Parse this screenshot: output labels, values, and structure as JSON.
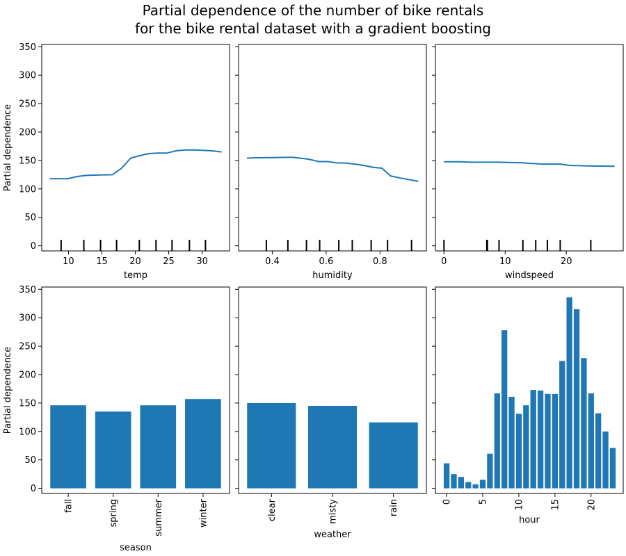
{
  "figure_title": [
    "Partial dependence of the number of bike rentals",
    "for the bike rental dataset with a gradient boosting"
  ],
  "colors": {
    "series": "#1f77b4",
    "rug": "#000000",
    "axes": "#000000"
  },
  "chart_data": [
    {
      "type": "line",
      "xlabel": "temp",
      "ylabel": "Partial dependence",
      "xlim": [
        6.0,
        34.1
      ],
      "ylim": [
        -9,
        354
      ],
      "grid": false,
      "xticks": [
        10,
        15,
        20,
        25,
        30
      ],
      "yticks": [
        0,
        50,
        100,
        150,
        200,
        250,
        300,
        350
      ],
      "x": [
        7.2,
        9.9,
        11.2,
        12.6,
        14.7,
        16.6,
        18.0,
        19.3,
        20.5,
        21.9,
        23.3,
        24.7,
        26.1,
        27.5,
        28.9,
        31.5,
        32.9
      ],
      "y": [
        118,
        118,
        121.6,
        123.7,
        124.5,
        125,
        137,
        154,
        158,
        162,
        163,
        163,
        167,
        168.5,
        168.5,
        167,
        165
      ],
      "deciles": [
        8.9,
        12.3,
        14.8,
        17.2,
        20.6,
        23.1,
        25.5,
        28.1,
        30.5
      ]
    },
    {
      "type": "line",
      "xlabel": "humidity",
      "ylabel": "",
      "xlim": [
        0.275,
        0.972
      ],
      "ylim": [
        -9,
        354
      ],
      "grid": false,
      "xticks": [
        0.4,
        0.6,
        0.8
      ],
      "yticks": [
        0,
        50,
        100,
        150,
        200,
        250,
        300,
        350
      ],
      "x": [
        0.306,
        0.34,
        0.405,
        0.474,
        0.534,
        0.573,
        0.607,
        0.637,
        0.671,
        0.706,
        0.74,
        0.774,
        0.807,
        0.839,
        0.877,
        0.942
      ],
      "y": [
        154,
        154.8,
        155,
        155.6,
        152.3,
        148,
        148,
        146,
        145.5,
        143.7,
        141.3,
        138,
        136.4,
        122.9,
        119,
        113.4
      ],
      "deciles": [
        0.378,
        0.458,
        0.527,
        0.576,
        0.647,
        0.697,
        0.767,
        0.828,
        0.917
      ]
    },
    {
      "type": "line",
      "xlabel": "windspeed",
      "ylabel": "",
      "xlim": [
        -1.4,
        29.3
      ],
      "ylim": [
        -9,
        354
      ],
      "grid": false,
      "xticks": [
        0,
        10,
        20
      ],
      "yticks": [
        0,
        50,
        100,
        150,
        200,
        250,
        300,
        350
      ],
      "x": [
        0,
        2.8,
        4.5,
        8.8,
        12.8,
        16,
        19,
        20.5,
        23.6,
        27.9
      ],
      "y": [
        147.8,
        147.8,
        147,
        147,
        145.8,
        143.7,
        143.7,
        141.3,
        140.5,
        139.7
      ],
      "deciles": [
        0,
        7.0,
        7.1,
        9.0,
        12.9,
        15.0,
        16.9,
        19.0,
        24.0
      ]
    },
    {
      "type": "bar",
      "xlabel": "season",
      "ylabel": "Partial dependence",
      "xlim": [
        -0.59,
        3.59
      ],
      "ylim": [
        -9,
        354
      ],
      "grid": false,
      "categories": [
        "fall",
        "spring",
        "summer",
        "winter"
      ],
      "values": [
        146,
        135,
        146,
        157
      ],
      "yticks": [
        0,
        50,
        100,
        150,
        200,
        250,
        300,
        350
      ]
    },
    {
      "type": "bar",
      "xlabel": "weather",
      "ylabel": "",
      "xlim": [
        -0.54,
        2.54
      ],
      "ylim": [
        -9,
        354
      ],
      "grid": false,
      "categories": [
        "clear",
        "misty",
        "rain"
      ],
      "values": [
        150,
        145,
        116
      ],
      "yticks": [
        0,
        50,
        100,
        150,
        200,
        250,
        300,
        350
      ]
    },
    {
      "type": "bar",
      "xlabel": "hour",
      "ylabel": "",
      "xlim": [
        -1.55,
        24.45
      ],
      "ylim": [
        -9,
        354
      ],
      "grid": false,
      "x": [
        0,
        1,
        2,
        3,
        4,
        5,
        6,
        7,
        8,
        9,
        10,
        11,
        12,
        13,
        14,
        15,
        16,
        17,
        18,
        19,
        20,
        21,
        22,
        23
      ],
      "values": [
        44,
        25,
        20,
        11,
        7,
        15,
        61,
        167,
        278,
        161,
        131,
        146,
        173,
        172,
        166,
        166,
        224,
        336,
        315,
        229,
        167,
        132,
        100,
        71
      ],
      "xticks": [
        0,
        5,
        10,
        15,
        20
      ],
      "xtick_rotation": 90,
      "yticks": [
        0,
        50,
        100,
        150,
        200,
        250,
        300,
        350
      ]
    }
  ]
}
